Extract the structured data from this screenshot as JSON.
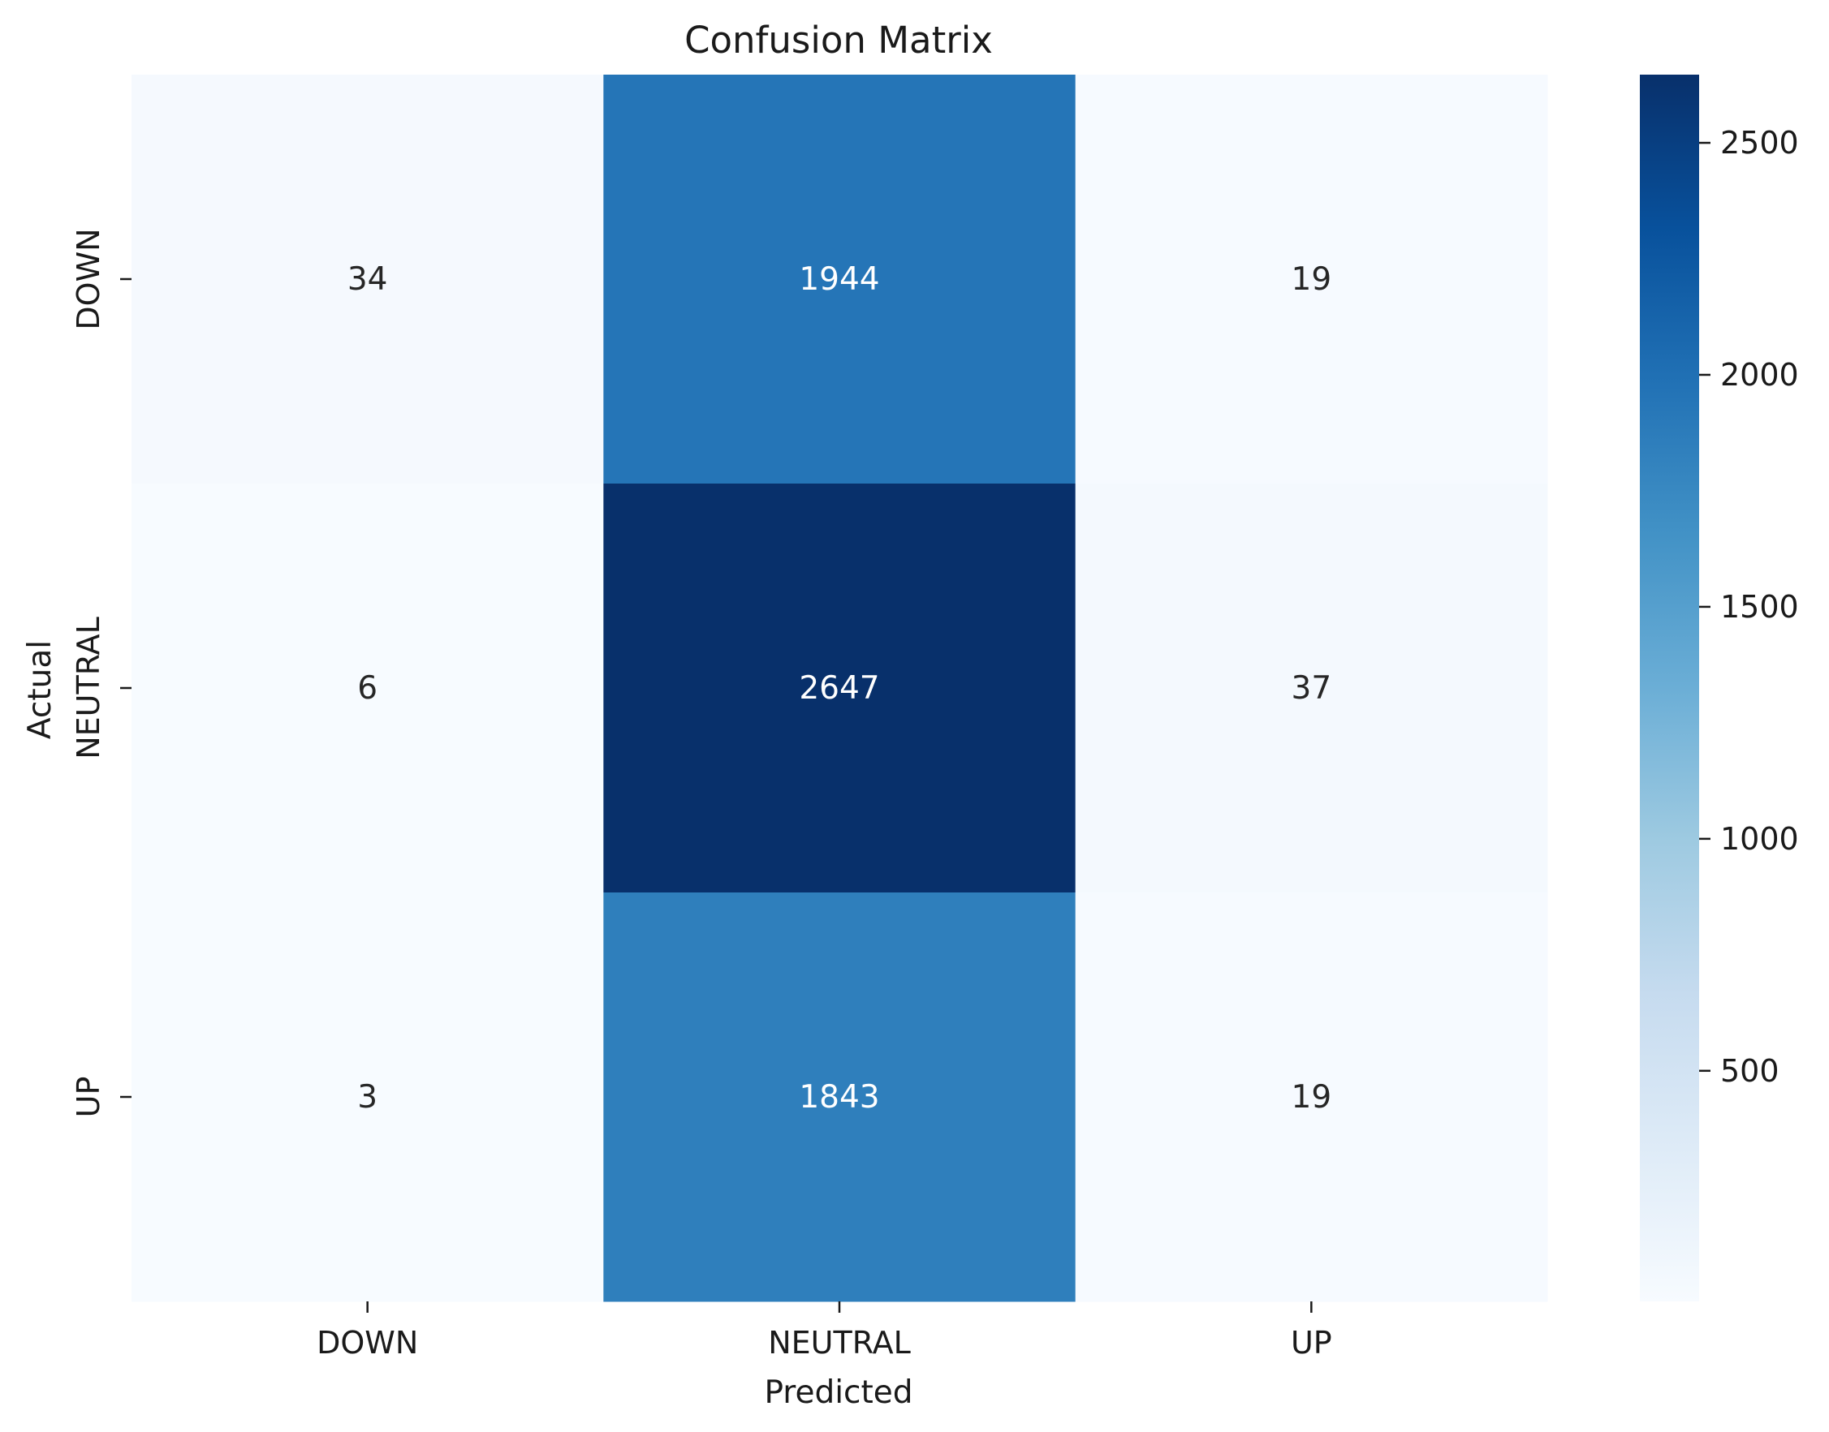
{
  "chart_data": {
    "type": "heatmap",
    "title": "Confusion Matrix",
    "xlabel": "Predicted",
    "ylabel": "Actual",
    "x_categories": [
      "DOWN",
      "NEUTRAL",
      "UP"
    ],
    "y_categories": [
      "DOWN",
      "NEUTRAL",
      "UP"
    ],
    "matrix": [
      [
        34,
        1944,
        19
      ],
      [
        6,
        2647,
        37
      ],
      [
        3,
        1843,
        19
      ]
    ],
    "colormap": "Blues",
    "vmin": 3,
    "vmax": 2647,
    "colorbar_ticks": [
      500,
      1000,
      1500,
      2000,
      2500
    ],
    "colorbar_tick_labels": [
      "500",
      "1000",
      "1500",
      "2000",
      "2500"
    ],
    "colorbar_stops": [
      "#f7fbff",
      "#deebf7",
      "#c6dbef",
      "#9ecae1",
      "#6baed6",
      "#4292c6",
      "#2171b5",
      "#08519c",
      "#08306b"
    ]
  }
}
